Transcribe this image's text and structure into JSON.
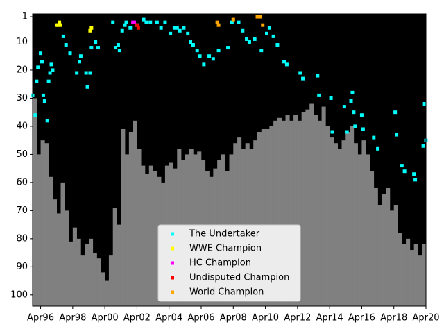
{
  "chart_data": {
    "type": "scatter",
    "xlim": [
      "1995-10",
      "2020-04"
    ],
    "ylim": [
      104,
      0
    ],
    "xticks": [
      {
        "value": "1996-04",
        "label": "Apr96"
      },
      {
        "value": "1998-04",
        "label": "Apr98"
      },
      {
        "value": "2000-04",
        "label": "Apr00"
      },
      {
        "value": "2002-04",
        "label": "Apr02"
      },
      {
        "value": "2004-04",
        "label": "Apr04"
      },
      {
        "value": "2006-04",
        "label": "Apr06"
      },
      {
        "value": "2008-04",
        "label": "Apr08"
      },
      {
        "value": "2010-04",
        "label": "Apr10"
      },
      {
        "value": "2012-04",
        "label": "Apr12"
      },
      {
        "value": "2014-04",
        "label": "Apr14"
      },
      {
        "value": "2016-04",
        "label": "Apr16"
      },
      {
        "value": "2018-04",
        "label": "Apr18"
      },
      {
        "value": "2020-04",
        "label": "Apr20"
      }
    ],
    "yticks": [
      1,
      10,
      20,
      30,
      40,
      50,
      60,
      70,
      80,
      90,
      100
    ],
    "background": "#000000",
    "legend": "lower center",
    "background_bars": {
      "type": "bar",
      "color": "#808080",
      "x": [
        "1995-10",
        "1996-01",
        "1996-04",
        "1996-07",
        "1996-10",
        "1997-01",
        "1997-04",
        "1997-07",
        "1997-10",
        "1998-01",
        "1998-04",
        "1998-07",
        "1998-10",
        "1999-01",
        "1999-04",
        "1999-07",
        "1999-10",
        "2000-01",
        "2000-04",
        "2000-07",
        "2000-10",
        "2001-01",
        "2001-04",
        "2001-07",
        "2001-10",
        "2002-01",
        "2002-04",
        "2002-07",
        "2002-10",
        "2003-01",
        "2003-04",
        "2003-07",
        "2003-10",
        "2004-01",
        "2004-04",
        "2004-07",
        "2004-10",
        "2005-01",
        "2005-04",
        "2005-07",
        "2005-10",
        "2006-01",
        "2006-04",
        "2006-07",
        "2006-10",
        "2007-01",
        "2007-04",
        "2007-07",
        "2007-10",
        "2008-01",
        "2008-04",
        "2008-07",
        "2008-10",
        "2009-01",
        "2009-04",
        "2009-07",
        "2009-10",
        "2010-01",
        "2010-04",
        "2010-07",
        "2010-10",
        "2011-01",
        "2011-04",
        "2011-07",
        "2011-10",
        "2012-01",
        "2012-04",
        "2012-07",
        "2012-10",
        "2013-01",
        "2013-04",
        "2013-07",
        "2013-10",
        "2014-01",
        "2014-04",
        "2014-07",
        "2014-10",
        "2015-01",
        "2015-04",
        "2015-07",
        "2015-10",
        "2016-01",
        "2016-04",
        "2016-07",
        "2016-10",
        "2017-01",
        "2017-04",
        "2017-07",
        "2017-10",
        "2018-01",
        "2018-04",
        "2018-07",
        "2018-10",
        "2019-01",
        "2019-04",
        "2019-07",
        "2019-10",
        "2020-01"
      ],
      "values": [
        30,
        50,
        45,
        46,
        58,
        66,
        71,
        60,
        70,
        81,
        76,
        80,
        86,
        82,
        80,
        85,
        87,
        92,
        95,
        86,
        69,
        75,
        41,
        50,
        42,
        38,
        48,
        54,
        57,
        54,
        56,
        58,
        60,
        54,
        53,
        55,
        48,
        52,
        50,
        48,
        50,
        49,
        52,
        56,
        58,
        55,
        52,
        50,
        56,
        50,
        46,
        44,
        48,
        46,
        48,
        45,
        42,
        41,
        41,
        40,
        38,
        37,
        38,
        36,
        38,
        36,
        38,
        35,
        34,
        32,
        36,
        38,
        33,
        40,
        44,
        46,
        48,
        45,
        42,
        40,
        46,
        50,
        45,
        50,
        56,
        62,
        68,
        64,
        62,
        70,
        68,
        78,
        82,
        80,
        84,
        82,
        86,
        82
      ]
    },
    "series": [
      {
        "name": "The Undertaker",
        "color": "#00ffff",
        "x": [
          "1995-10",
          "1995-12",
          "1996-01",
          "1996-02",
          "1996-04",
          "1996-05",
          "1996-06",
          "1996-07",
          "1996-09",
          "1996-10",
          "1996-11",
          "1996-12",
          "1997-01",
          "1997-09",
          "1997-11",
          "1998-02",
          "1998-07",
          "1998-09",
          "1998-10",
          "1999-02",
          "1999-03",
          "1999-05",
          "1999-06",
          "1999-09",
          "1999-11",
          "2000-10",
          "2000-12",
          "2001-02",
          "2001-03",
          "2001-05",
          "2001-07",
          "2001-08",
          "2001-11",
          "2002-04",
          "2002-09",
          "2002-11",
          "2003-02",
          "2003-07",
          "2003-10",
          "2004-01",
          "2004-05",
          "2004-08",
          "2004-10",
          "2004-12",
          "2005-03",
          "2005-06",
          "2005-08",
          "2005-10",
          "2006-01",
          "2006-03",
          "2006-06",
          "2006-10",
          "2007-01",
          "2007-05",
          "2007-12",
          "2008-03",
          "2008-08",
          "2008-11",
          "2009-02",
          "2009-04",
          "2009-08",
          "2010-01",
          "2010-05",
          "2010-07",
          "2010-10",
          "2011-01",
          "2011-06",
          "2011-08",
          "2012-06",
          "2012-08",
          "2013-07",
          "2013-08",
          "2014-05",
          "2014-06",
          "2015-03",
          "2015-05",
          "2015-08",
          "2015-09",
          "2015-10",
          "2015-11",
          "2016-04",
          "2016-05",
          "2017-01",
          "2017-04",
          "2018-05",
          "2018-06",
          "2018-10",
          "2018-12",
          "2019-07",
          "2019-08",
          "2020-02",
          "2020-04",
          "2020-03"
        ],
        "values": [
          29,
          36,
          24,
          19,
          14,
          17,
          29,
          31,
          38,
          24,
          21,
          18,
          20,
          8,
          11,
          14,
          21,
          17,
          15,
          21,
          26,
          21,
          12,
          10,
          12,
          3,
          12,
          11,
          13,
          6,
          4,
          3,
          5,
          4,
          2,
          3,
          3,
          3,
          5,
          3,
          7,
          5,
          5,
          6,
          5,
          7,
          10,
          11,
          13,
          15,
          18,
          15,
          16,
          13,
          12,
          3,
          3,
          6,
          9,
          10,
          9,
          13,
          7,
          5,
          8,
          11,
          17,
          18,
          21,
          23,
          22,
          29,
          30,
          42,
          33,
          42,
          31,
          28,
          35,
          40,
          36,
          41,
          44,
          48,
          35,
          43,
          54,
          56,
          57,
          59,
          47,
          45,
          32
        ]
      },
      {
        "name": "WWE Champion",
        "color": "#ffff00",
        "x": [
          "1997-04",
          "1997-05",
          "1997-06",
          "1997-07",
          "1999-05",
          "1999-06"
        ],
        "values": [
          4,
          4,
          3,
          4,
          6,
          5
        ]
      },
      {
        "name": "HC Champion",
        "color": "#ff00ff",
        "x": [
          "2002-01",
          "2002-02"
        ],
        "values": [
          3,
          3
        ]
      },
      {
        "name": "Undisputed Champion",
        "color": "#ff0000",
        "x": [
          "2002-04",
          "2002-05"
        ],
        "values": [
          4,
          5
        ]
      },
      {
        "name": "World Champion",
        "color": "#ffa500",
        "x": [
          "2007-04",
          "2007-05",
          "2008-04",
          "2009-10",
          "2009-12",
          "2010-02"
        ],
        "values": [
          3,
          4,
          2,
          1,
          1,
          4
        ]
      }
    ]
  }
}
